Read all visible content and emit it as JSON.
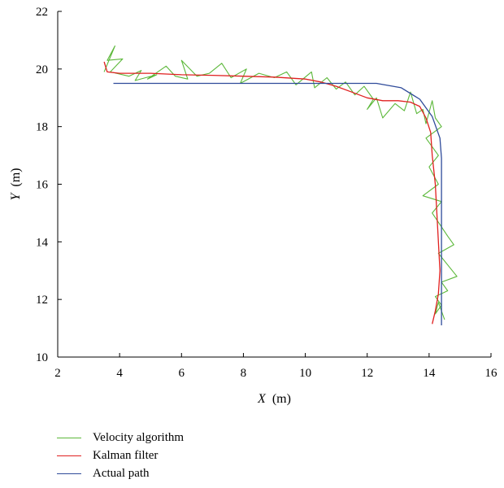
{
  "chart_data": {
    "type": "line",
    "title": "",
    "xlabel": {
      "var": "X",
      "unit": "(m)"
    },
    "ylabel": {
      "var": "Y",
      "unit": "(m)"
    },
    "xlim": [
      2,
      16
    ],
    "ylim": [
      10,
      22
    ],
    "xticks": [
      2,
      4,
      6,
      8,
      10,
      12,
      14,
      16
    ],
    "yticks": [
      10,
      12,
      14,
      16,
      18,
      20,
      22
    ],
    "grid": false,
    "legend_position": "bottom-left",
    "series": [
      {
        "name": "Velocity algorithm",
        "color": "#5cb83a",
        "points": [
          [
            3.5,
            19.9
          ],
          [
            3.85,
            20.8
          ],
          [
            3.6,
            20.3
          ],
          [
            4.1,
            20.35
          ],
          [
            3.7,
            19.9
          ],
          [
            4.3,
            19.75
          ],
          [
            4.7,
            19.95
          ],
          [
            4.5,
            19.6
          ],
          [
            5.2,
            19.8
          ],
          [
            4.9,
            19.65
          ],
          [
            5.5,
            20.1
          ],
          [
            5.8,
            19.75
          ],
          [
            6.2,
            19.65
          ],
          [
            6.0,
            20.3
          ],
          [
            6.5,
            19.75
          ],
          [
            6.9,
            19.85
          ],
          [
            7.3,
            20.2
          ],
          [
            7.6,
            19.7
          ],
          [
            8.1,
            20.0
          ],
          [
            7.9,
            19.5
          ],
          [
            8.5,
            19.85
          ],
          [
            9.0,
            19.7
          ],
          [
            9.4,
            19.9
          ],
          [
            9.7,
            19.45
          ],
          [
            10.2,
            19.9
          ],
          [
            10.3,
            19.35
          ],
          [
            10.7,
            19.7
          ],
          [
            11.0,
            19.3
          ],
          [
            11.3,
            19.55
          ],
          [
            11.6,
            19.1
          ],
          [
            11.9,
            19.4
          ],
          [
            12.2,
            18.95
          ],
          [
            12.0,
            18.6
          ],
          [
            12.3,
            19.0
          ],
          [
            12.5,
            18.3
          ],
          [
            12.9,
            18.8
          ],
          [
            13.2,
            18.55
          ],
          [
            13.4,
            19.2
          ],
          [
            13.6,
            18.45
          ],
          [
            13.8,
            18.6
          ],
          [
            13.9,
            18.1
          ],
          [
            14.1,
            18.9
          ],
          [
            14.2,
            18.3
          ],
          [
            14.4,
            18.0
          ],
          [
            13.9,
            17.6
          ],
          [
            14.3,
            17.0
          ],
          [
            14.0,
            16.6
          ],
          [
            14.3,
            16.0
          ],
          [
            13.8,
            15.6
          ],
          [
            14.4,
            15.4
          ],
          [
            14.1,
            15.0
          ],
          [
            14.6,
            14.2
          ],
          [
            14.8,
            13.9
          ],
          [
            14.3,
            13.6
          ],
          [
            14.6,
            13.2
          ],
          [
            14.9,
            12.8
          ],
          [
            14.4,
            12.6
          ],
          [
            14.6,
            12.3
          ],
          [
            14.2,
            12.1
          ],
          [
            14.4,
            11.8
          ],
          [
            14.2,
            11.5
          ],
          [
            14.3,
            11.9
          ],
          [
            14.5,
            11.3
          ]
        ]
      },
      {
        "name": "Kalman filter",
        "color": "#e02020",
        "points": [
          [
            3.5,
            20.25
          ],
          [
            3.6,
            19.9
          ],
          [
            4.0,
            19.85
          ],
          [
            5.0,
            19.85
          ],
          [
            6.0,
            19.8
          ],
          [
            7.0,
            19.78
          ],
          [
            8.0,
            19.75
          ],
          [
            9.0,
            19.72
          ],
          [
            10.0,
            19.65
          ],
          [
            10.5,
            19.55
          ],
          [
            11.0,
            19.4
          ],
          [
            11.5,
            19.2
          ],
          [
            12.0,
            19.0
          ],
          [
            12.5,
            18.9
          ],
          [
            13.0,
            18.9
          ],
          [
            13.4,
            18.85
          ],
          [
            13.7,
            18.7
          ],
          [
            13.9,
            18.3
          ],
          [
            14.05,
            17.8
          ],
          [
            14.1,
            17.0
          ],
          [
            14.2,
            16.0
          ],
          [
            14.25,
            15.0
          ],
          [
            14.3,
            14.0
          ],
          [
            14.35,
            13.0
          ],
          [
            14.3,
            12.2
          ],
          [
            14.2,
            11.6
          ],
          [
            14.1,
            11.15
          ]
        ]
      },
      {
        "name": "Actual path",
        "color": "#2f4b9a",
        "points": [
          [
            3.8,
            19.5
          ],
          [
            12.3,
            19.5
          ],
          [
            13.1,
            19.35
          ],
          [
            13.7,
            18.95
          ],
          [
            14.1,
            18.35
          ],
          [
            14.35,
            17.6
          ],
          [
            14.4,
            16.9
          ],
          [
            14.4,
            11.1
          ]
        ]
      }
    ]
  }
}
